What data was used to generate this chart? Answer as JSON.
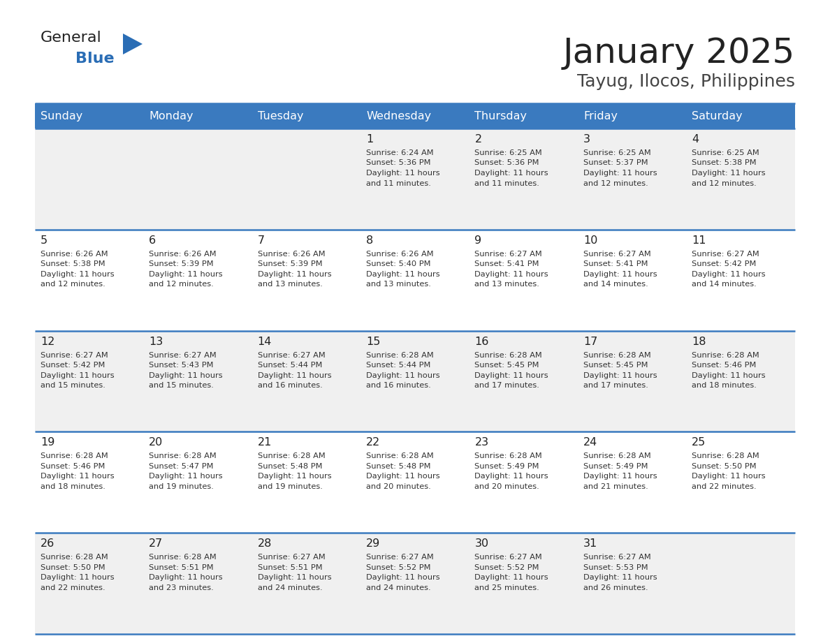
{
  "title": "January 2025",
  "subtitle": "Tayug, Ilocos, Philippines",
  "days_of_week": [
    "Sunday",
    "Monday",
    "Tuesday",
    "Wednesday",
    "Thursday",
    "Friday",
    "Saturday"
  ],
  "header_bg": "#3a7abf",
  "header_text": "#ffffff",
  "row_bg_odd": "#f0f0f0",
  "row_bg_even": "#ffffff",
  "cell_border": "#3a7abf",
  "day_number_color": "#222222",
  "info_text_color": "#333333",
  "title_color": "#222222",
  "subtitle_color": "#444444",
  "logo_general_color": "#222222",
  "logo_blue_color": "#2a6db5",
  "calendar": [
    [
      {
        "day": null,
        "info": ""
      },
      {
        "day": null,
        "info": ""
      },
      {
        "day": null,
        "info": ""
      },
      {
        "day": 1,
        "info": "Sunrise: 6:24 AM\nSunset: 5:36 PM\nDaylight: 11 hours\nand 11 minutes."
      },
      {
        "day": 2,
        "info": "Sunrise: 6:25 AM\nSunset: 5:36 PM\nDaylight: 11 hours\nand 11 minutes."
      },
      {
        "day": 3,
        "info": "Sunrise: 6:25 AM\nSunset: 5:37 PM\nDaylight: 11 hours\nand 12 minutes."
      },
      {
        "day": 4,
        "info": "Sunrise: 6:25 AM\nSunset: 5:38 PM\nDaylight: 11 hours\nand 12 minutes."
      }
    ],
    [
      {
        "day": 5,
        "info": "Sunrise: 6:26 AM\nSunset: 5:38 PM\nDaylight: 11 hours\nand 12 minutes."
      },
      {
        "day": 6,
        "info": "Sunrise: 6:26 AM\nSunset: 5:39 PM\nDaylight: 11 hours\nand 12 minutes."
      },
      {
        "day": 7,
        "info": "Sunrise: 6:26 AM\nSunset: 5:39 PM\nDaylight: 11 hours\nand 13 minutes."
      },
      {
        "day": 8,
        "info": "Sunrise: 6:26 AM\nSunset: 5:40 PM\nDaylight: 11 hours\nand 13 minutes."
      },
      {
        "day": 9,
        "info": "Sunrise: 6:27 AM\nSunset: 5:41 PM\nDaylight: 11 hours\nand 13 minutes."
      },
      {
        "day": 10,
        "info": "Sunrise: 6:27 AM\nSunset: 5:41 PM\nDaylight: 11 hours\nand 14 minutes."
      },
      {
        "day": 11,
        "info": "Sunrise: 6:27 AM\nSunset: 5:42 PM\nDaylight: 11 hours\nand 14 minutes."
      }
    ],
    [
      {
        "day": 12,
        "info": "Sunrise: 6:27 AM\nSunset: 5:42 PM\nDaylight: 11 hours\nand 15 minutes."
      },
      {
        "day": 13,
        "info": "Sunrise: 6:27 AM\nSunset: 5:43 PM\nDaylight: 11 hours\nand 15 minutes."
      },
      {
        "day": 14,
        "info": "Sunrise: 6:27 AM\nSunset: 5:44 PM\nDaylight: 11 hours\nand 16 minutes."
      },
      {
        "day": 15,
        "info": "Sunrise: 6:28 AM\nSunset: 5:44 PM\nDaylight: 11 hours\nand 16 minutes."
      },
      {
        "day": 16,
        "info": "Sunrise: 6:28 AM\nSunset: 5:45 PM\nDaylight: 11 hours\nand 17 minutes."
      },
      {
        "day": 17,
        "info": "Sunrise: 6:28 AM\nSunset: 5:45 PM\nDaylight: 11 hours\nand 17 minutes."
      },
      {
        "day": 18,
        "info": "Sunrise: 6:28 AM\nSunset: 5:46 PM\nDaylight: 11 hours\nand 18 minutes."
      }
    ],
    [
      {
        "day": 19,
        "info": "Sunrise: 6:28 AM\nSunset: 5:46 PM\nDaylight: 11 hours\nand 18 minutes."
      },
      {
        "day": 20,
        "info": "Sunrise: 6:28 AM\nSunset: 5:47 PM\nDaylight: 11 hours\nand 19 minutes."
      },
      {
        "day": 21,
        "info": "Sunrise: 6:28 AM\nSunset: 5:48 PM\nDaylight: 11 hours\nand 19 minutes."
      },
      {
        "day": 22,
        "info": "Sunrise: 6:28 AM\nSunset: 5:48 PM\nDaylight: 11 hours\nand 20 minutes."
      },
      {
        "day": 23,
        "info": "Sunrise: 6:28 AM\nSunset: 5:49 PM\nDaylight: 11 hours\nand 20 minutes."
      },
      {
        "day": 24,
        "info": "Sunrise: 6:28 AM\nSunset: 5:49 PM\nDaylight: 11 hours\nand 21 minutes."
      },
      {
        "day": 25,
        "info": "Sunrise: 6:28 AM\nSunset: 5:50 PM\nDaylight: 11 hours\nand 22 minutes."
      }
    ],
    [
      {
        "day": 26,
        "info": "Sunrise: 6:28 AM\nSunset: 5:50 PM\nDaylight: 11 hours\nand 22 minutes."
      },
      {
        "day": 27,
        "info": "Sunrise: 6:28 AM\nSunset: 5:51 PM\nDaylight: 11 hours\nand 23 minutes."
      },
      {
        "day": 28,
        "info": "Sunrise: 6:27 AM\nSunset: 5:51 PM\nDaylight: 11 hours\nand 24 minutes."
      },
      {
        "day": 29,
        "info": "Sunrise: 6:27 AM\nSunset: 5:52 PM\nDaylight: 11 hours\nand 24 minutes."
      },
      {
        "day": 30,
        "info": "Sunrise: 6:27 AM\nSunset: 5:52 PM\nDaylight: 11 hours\nand 25 minutes."
      },
      {
        "day": 31,
        "info": "Sunrise: 6:27 AM\nSunset: 5:53 PM\nDaylight: 11 hours\nand 26 minutes."
      },
      {
        "day": null,
        "info": ""
      }
    ]
  ]
}
